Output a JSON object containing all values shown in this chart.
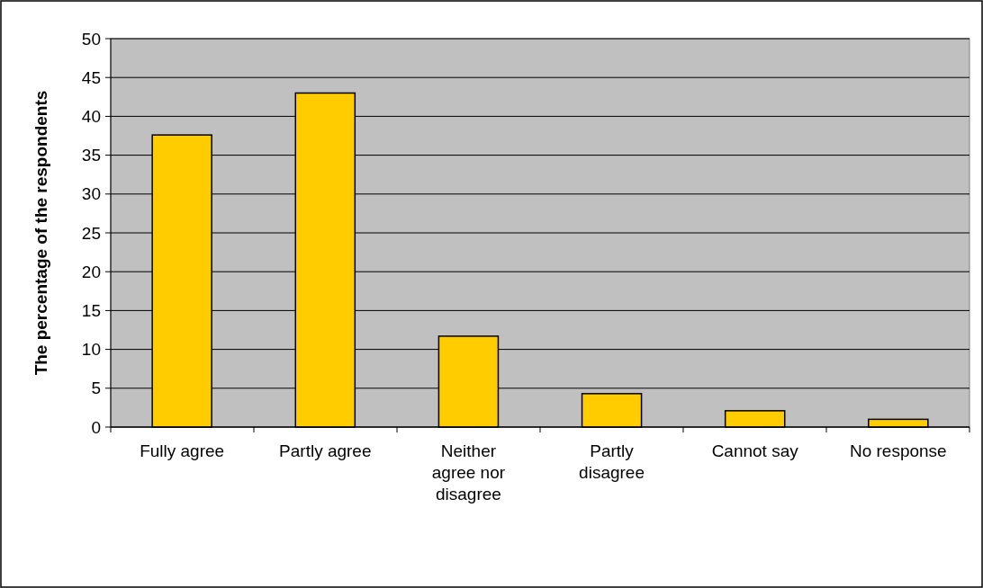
{
  "chart_data": {
    "type": "bar",
    "ylabel": "The percentage of the respondents",
    "categories": [
      "Fully agree",
      "Partly agree",
      "Neither agree nor disagree",
      "Partly disagree",
      "Cannot say",
      "No response"
    ],
    "values": [
      37.6,
      43.0,
      11.7,
      4.3,
      2.1,
      1.0
    ],
    "color": "#ffcc00",
    "ylim": [
      0,
      50
    ],
    "yticks": [
      0,
      5,
      10,
      15,
      20,
      25,
      30,
      35,
      40,
      45,
      50
    ],
    "grid": "y"
  }
}
